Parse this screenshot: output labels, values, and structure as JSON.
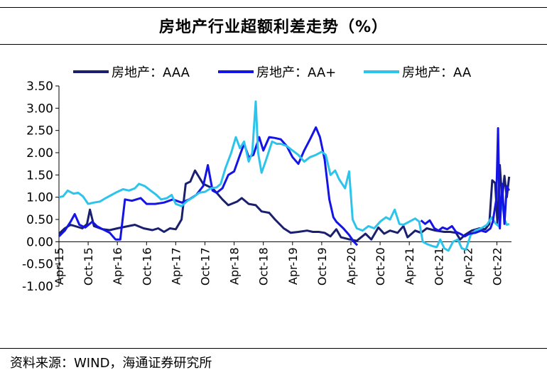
{
  "chart_data": {
    "type": "line",
    "title": "房地产行业超额利差走势（%）",
    "source": "资料来源：WIND，海通证券研究所",
    "xlabel": "",
    "ylabel": "",
    "ylim": [
      -1.0,
      3.5
    ],
    "yticks": [
      "3.50",
      "3.00",
      "2.50",
      "2.00",
      "1.50",
      "1.00",
      "0.50",
      "0.00",
      "-0.50",
      "-1.00"
    ],
    "ytick_values": [
      3.5,
      3.0,
      2.5,
      2.0,
      1.5,
      1.0,
      0.5,
      0.0,
      -0.5,
      -1.0
    ],
    "xlim": [
      2015.25,
      2023.0
    ],
    "xticks": [
      "Apr-15",
      "Oct-15",
      "Apr-16",
      "Oct-16",
      "Apr-17",
      "Oct-17",
      "Apr-18",
      "Oct-18",
      "Apr-19",
      "Oct-19",
      "Apr-20",
      "Oct-20",
      "Apr-21",
      "Oct-21",
      "Apr-22",
      "Oct-22"
    ],
    "xtick_values": [
      2015.25,
      2015.75,
      2016.25,
      2016.75,
      2017.25,
      2017.75,
      2018.25,
      2018.75,
      2019.25,
      2019.75,
      2020.25,
      2020.75,
      2021.25,
      2021.75,
      2022.25,
      2022.75
    ],
    "legend": "top",
    "series": [
      {
        "name": "房地产：AAA",
        "color": "#1a1f6e",
        "points": [
          [
            2015.25,
            0.18
          ],
          [
            2015.35,
            0.3
          ],
          [
            2015.45,
            0.38
          ],
          [
            2015.55,
            0.34
          ],
          [
            2015.65,
            0.3
          ],
          [
            2015.73,
            0.4
          ],
          [
            2015.78,
            0.72
          ],
          [
            2015.85,
            0.35
          ],
          [
            2016.0,
            0.28
          ],
          [
            2016.12,
            0.26
          ],
          [
            2016.25,
            0.3
          ],
          [
            2016.4,
            0.34
          ],
          [
            2016.55,
            0.38
          ],
          [
            2016.7,
            0.3
          ],
          [
            2016.85,
            0.26
          ],
          [
            2016.95,
            0.3
          ],
          [
            2017.05,
            0.22
          ],
          [
            2017.15,
            0.3
          ],
          [
            2017.25,
            0.28
          ],
          [
            2017.35,
            0.5
          ],
          [
            2017.42,
            1.3
          ],
          [
            2017.5,
            1.35
          ],
          [
            2017.58,
            1.6
          ],
          [
            2017.65,
            1.45
          ],
          [
            2017.72,
            1.3
          ],
          [
            2017.8,
            1.25
          ],
          [
            2017.88,
            1.2
          ],
          [
            2017.95,
            1.1
          ],
          [
            2018.05,
            0.95
          ],
          [
            2018.15,
            0.82
          ],
          [
            2018.3,
            0.9
          ],
          [
            2018.38,
            0.98
          ],
          [
            2018.5,
            0.85
          ],
          [
            2018.62,
            0.82
          ],
          [
            2018.72,
            0.68
          ],
          [
            2018.85,
            0.65
          ],
          [
            2018.95,
            0.5
          ],
          [
            2019.1,
            0.3
          ],
          [
            2019.22,
            0.2
          ],
          [
            2019.35,
            0.22
          ],
          [
            2019.5,
            0.25
          ],
          [
            2019.6,
            0.22
          ],
          [
            2019.7,
            0.22
          ],
          [
            2019.8,
            0.2
          ],
          [
            2019.9,
            0.12
          ],
          [
            2020.0,
            0.28
          ],
          [
            2020.08,
            0.1
          ],
          [
            2020.2,
            0.06
          ],
          [
            2020.35,
            0.02
          ],
          [
            2020.5,
            0.18
          ],
          [
            2020.6,
            0.05
          ],
          [
            2020.72,
            0.32
          ],
          [
            2020.82,
            0.18
          ],
          [
            2020.92,
            0.25
          ],
          [
            2021.05,
            0.2
          ],
          [
            2021.15,
            0.35
          ],
          [
            2021.22,
            0.1
          ],
          [
            2021.35,
            0.25
          ],
          [
            2021.45,
            0.2
          ],
          [
            2021.55,
            0.3
          ],
          [
            2021.7,
            0.25
          ],
          [
            2021.85,
            0.22
          ],
          [
            2021.95,
            0.22
          ],
          [
            2022.05,
            0.2
          ],
          [
            2022.12,
            0.05
          ],
          [
            2022.2,
            0.15
          ],
          [
            2022.32,
            0.25
          ],
          [
            2022.45,
            0.3
          ],
          [
            2022.55,
            0.28
          ],
          [
            2022.62,
            0.4
          ],
          [
            2022.67,
            1.38
          ],
          [
            2022.72,
            1.32
          ],
          [
            2022.76,
            0.4
          ],
          [
            2022.8,
            1.72
          ],
          [
            2022.84,
            0.95
          ],
          [
            2022.88,
            1.48
          ],
          [
            2022.92,
            1.0
          ],
          [
            2022.96,
            1.46
          ]
        ]
      },
      {
        "name": "房地产：AA+",
        "color": "#1414e6",
        "points": [
          [
            2015.25,
            0.12
          ],
          [
            2015.35,
            0.25
          ],
          [
            2015.45,
            0.45
          ],
          [
            2015.52,
            0.62
          ],
          [
            2015.6,
            0.38
          ],
          [
            2015.7,
            0.32
          ],
          [
            2015.82,
            0.45
          ],
          [
            2015.9,
            0.35
          ],
          [
            2016.0,
            0.28
          ],
          [
            2016.12,
            0.2
          ],
          [
            2016.22,
            0.05
          ],
          [
            2016.3,
            0.05
          ],
          [
            2016.38,
            0.95
          ],
          [
            2016.5,
            0.92
          ],
          [
            2016.65,
            0.98
          ],
          [
            2016.75,
            0.85
          ],
          [
            2016.9,
            0.85
          ],
          [
            2017.05,
            0.88
          ],
          [
            2017.2,
            0.95
          ],
          [
            2017.35,
            0.88
          ],
          [
            2017.48,
            0.95
          ],
          [
            2017.6,
            1.05
          ],
          [
            2017.72,
            1.25
          ],
          [
            2017.8,
            1.72
          ],
          [
            2017.88,
            1.15
          ],
          [
            2017.95,
            1.1
          ],
          [
            2018.05,
            1.2
          ],
          [
            2018.15,
            1.5
          ],
          [
            2018.25,
            1.58
          ],
          [
            2018.35,
            1.95
          ],
          [
            2018.42,
            2.2
          ],
          [
            2018.5,
            1.9
          ],
          [
            2018.58,
            1.95
          ],
          [
            2018.68,
            2.35
          ],
          [
            2018.75,
            2.05
          ],
          [
            2018.85,
            2.35
          ],
          [
            2018.95,
            2.33
          ],
          [
            2019.05,
            2.3
          ],
          [
            2019.15,
            2.15
          ],
          [
            2019.25,
            1.9
          ],
          [
            2019.35,
            1.75
          ],
          [
            2019.45,
            2.05
          ],
          [
            2019.55,
            2.3
          ],
          [
            2019.65,
            2.57
          ],
          [
            2019.72,
            2.35
          ],
          [
            2019.8,
            1.85
          ],
          [
            2019.88,
            0.95
          ],
          [
            2019.95,
            0.55
          ],
          [
            2020.0,
            0.45
          ],
          [
            2020.12,
            0.3
          ],
          [
            2020.22,
            0.15
          ],
          [
            2020.3,
            0.0
          ],
          [
            2020.36,
            -0.08
          ]
        ]
      },
      {
        "name": "房地产：AA",
        "color": "#2dc4ec",
        "points": [
          [
            2015.25,
            1.0
          ],
          [
            2015.32,
            1.02
          ],
          [
            2015.4,
            1.15
          ],
          [
            2015.5,
            1.08
          ],
          [
            2015.58,
            1.1
          ],
          [
            2015.66,
            1.02
          ],
          [
            2015.75,
            0.85
          ],
          [
            2015.85,
            0.88
          ],
          [
            2015.95,
            0.9
          ],
          [
            2016.05,
            0.98
          ],
          [
            2016.15,
            1.05
          ],
          [
            2016.25,
            1.12
          ],
          [
            2016.35,
            1.18
          ],
          [
            2016.45,
            1.15
          ],
          [
            2016.55,
            1.2
          ],
          [
            2016.62,
            1.3
          ],
          [
            2016.72,
            1.25
          ],
          [
            2016.82,
            1.15
          ],
          [
            2016.92,
            1.05
          ],
          [
            2017.0,
            0.95
          ],
          [
            2017.1,
            0.98
          ],
          [
            2017.18,
            1.05
          ],
          [
            2017.25,
            0.85
          ],
          [
            2017.35,
            0.8
          ],
          [
            2017.45,
            0.92
          ],
          [
            2017.55,
            1.0
          ],
          [
            2017.65,
            1.1
          ],
          [
            2017.75,
            1.12
          ],
          [
            2017.85,
            1.2
          ],
          [
            2017.95,
            1.22
          ],
          [
            2018.02,
            1.3
          ],
          [
            2018.1,
            1.65
          ],
          [
            2018.2,
            2.0
          ],
          [
            2018.28,
            2.35
          ],
          [
            2018.35,
            2.1
          ],
          [
            2018.42,
            2.25
          ],
          [
            2018.5,
            1.8
          ],
          [
            2018.56,
            2.0
          ],
          [
            2018.62,
            3.15
          ],
          [
            2018.66,
            2.0
          ],
          [
            2018.72,
            1.55
          ],
          [
            2018.8,
            1.85
          ],
          [
            2018.9,
            2.25
          ],
          [
            2018.98,
            2.2
          ],
          [
            2019.05,
            2.2
          ],
          [
            2019.15,
            2.15
          ],
          [
            2019.25,
            2.05
          ],
          [
            2019.35,
            1.95
          ],
          [
            2019.45,
            1.8
          ],
          [
            2019.55,
            1.9
          ],
          [
            2019.65,
            1.95
          ],
          [
            2019.75,
            2.02
          ],
          [
            2019.82,
            1.95
          ],
          [
            2019.9,
            1.5
          ],
          [
            2019.98,
            1.6
          ],
          [
            2020.05,
            1.4
          ],
          [
            2020.15,
            1.2
          ],
          [
            2020.22,
            1.58
          ],
          [
            2020.28,
            0.5
          ],
          [
            2020.35,
            0.3
          ],
          [
            2020.45,
            0.25
          ],
          [
            2020.55,
            0.35
          ],
          [
            2020.65,
            0.3
          ],
          [
            2020.75,
            0.45
          ],
          [
            2020.85,
            0.55
          ],
          [
            2020.92,
            0.5
          ],
          [
            2021.0,
            0.72
          ],
          [
            2021.08,
            0.4
          ],
          [
            2021.15,
            0.38
          ],
          [
            2021.25,
            0.45
          ],
          [
            2021.35,
            0.52
          ],
          [
            2021.42,
            0.45
          ],
          [
            2021.48,
            0.0
          ],
          [
            2021.55,
            -0.05
          ],
          [
            2021.65,
            -0.1
          ],
          [
            2021.72,
            -0.12
          ],
          [
            2021.78,
            0.05
          ],
          [
            2021.85,
            -0.15
          ],
          [
            2021.92,
            -0.2
          ],
          [
            2022.0,
            0.0
          ],
          [
            2022.08,
            0.05
          ],
          [
            2022.15,
            -0.15
          ],
          [
            2022.22,
            -0.18
          ],
          [
            2022.3,
            0.15
          ],
          [
            2022.38,
            0.25
          ],
          [
            2022.48,
            0.3
          ],
          [
            2022.58,
            0.38
          ],
          [
            2022.66,
            0.55
          ],
          [
            2022.72,
            0.42
          ],
          [
            2022.78,
            0.35
          ],
          [
            2022.84,
            0.9
          ],
          [
            2022.88,
            0.5
          ],
          [
            2022.92,
            0.38
          ],
          [
            2022.96,
            0.4
          ]
        ]
      },
      {
        "name": "",
        "color": "#1414e6",
        "points": [
          [
            2021.45,
            0.48
          ],
          [
            2021.52,
            0.4
          ],
          [
            2021.6,
            0.48
          ],
          [
            2021.68,
            0.3
          ],
          [
            2021.75,
            0.25
          ],
          [
            2021.82,
            0.32
          ],
          [
            2021.9,
            0.28
          ],
          [
            2021.98,
            0.35
          ],
          [
            2022.05,
            0.22
          ],
          [
            2022.12,
            0.18
          ],
          [
            2022.2,
            0.12
          ],
          [
            2022.28,
            0.18
          ],
          [
            2022.38,
            0.2
          ],
          [
            2022.48,
            0.25
          ],
          [
            2022.56,
            0.22
          ],
          [
            2022.64,
            0.3
          ],
          [
            2022.68,
            0.45
          ],
          [
            2022.74,
            0.95
          ],
          [
            2022.77,
            2.55
          ],
          [
            2022.8,
            0.3
          ],
          [
            2022.84,
            1.3
          ],
          [
            2022.88,
            0.4
          ],
          [
            2022.92,
            1.25
          ],
          [
            2022.96,
            1.15
          ]
        ]
      }
    ]
  }
}
